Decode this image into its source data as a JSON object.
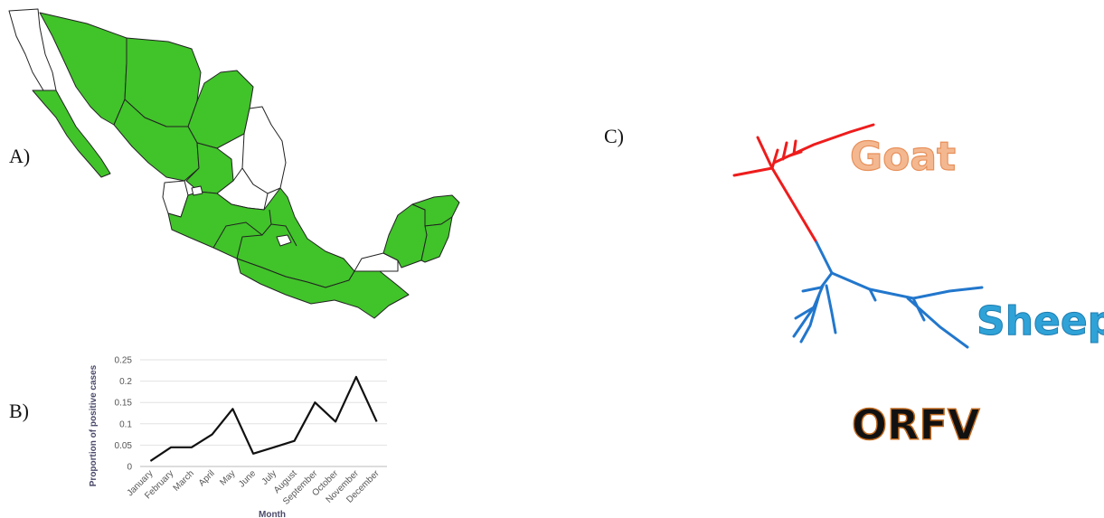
{
  "panels": {
    "a": "A)",
    "b": "B)",
    "c": "C)"
  },
  "colors": {
    "map_fill": "#41c32a",
    "map_white": "#ffffff",
    "goat": "#f0a070",
    "goat_branch": "#ee1c1c",
    "sheep": "#3aa0d0",
    "sheep_branch": "#2277cc",
    "orfv": "#111111",
    "line": "#111111"
  },
  "tree": {
    "goat_label": "Goat",
    "sheep_label": "Sheep",
    "title": "ORFV"
  },
  "chart_data": {
    "type": "line",
    "categories": [
      "January",
      "February",
      "March",
      "April",
      "May",
      "June",
      "July",
      "August",
      "September",
      "October",
      "November",
      "December"
    ],
    "values": [
      0.013,
      0.045,
      0.045,
      0.075,
      0.135,
      0.03,
      0.045,
      0.06,
      0.15,
      0.105,
      0.21,
      0.105
    ],
    "yticks": [
      "0",
      "0.05",
      "0.1",
      "0.15",
      "0.2",
      "0.25"
    ],
    "ylim": [
      0,
      0.25
    ],
    "xlabel": "Month",
    "ylabel": "Proportion of positive cases",
    "grid": true
  }
}
